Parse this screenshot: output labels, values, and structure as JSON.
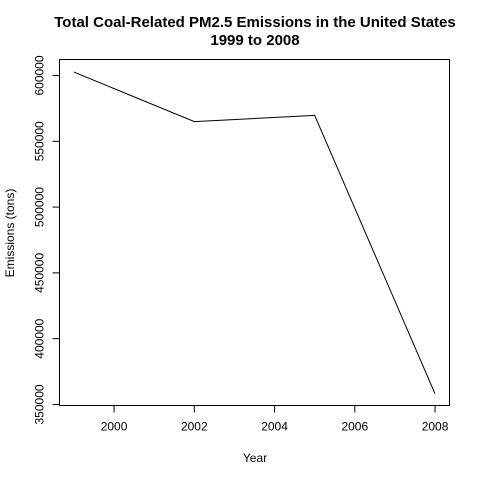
{
  "chart_data": {
    "type": "line",
    "title": "Total Coal-Related PM2.5 Emissions in the United States",
    "subtitle": "1999 to 2008",
    "xlabel": "Year",
    "ylabel": "Emissions (tons)",
    "xlim": [
      1998.64,
      2008.36
    ],
    "ylim": [
      349220,
      612160
    ],
    "x_ticks": [
      2000,
      2002,
      2004,
      2006,
      2008
    ],
    "y_ticks": [
      350000,
      400000,
      450000,
      500000,
      550000,
      600000
    ],
    "grid": false,
    "legend": "none",
    "line_color": "#000000",
    "x": [
      1999,
      2002,
      2005,
      2008
    ],
    "series": [
      {
        "values": [
          602624,
          564940,
          569655,
          358084
        ]
      }
    ]
  }
}
